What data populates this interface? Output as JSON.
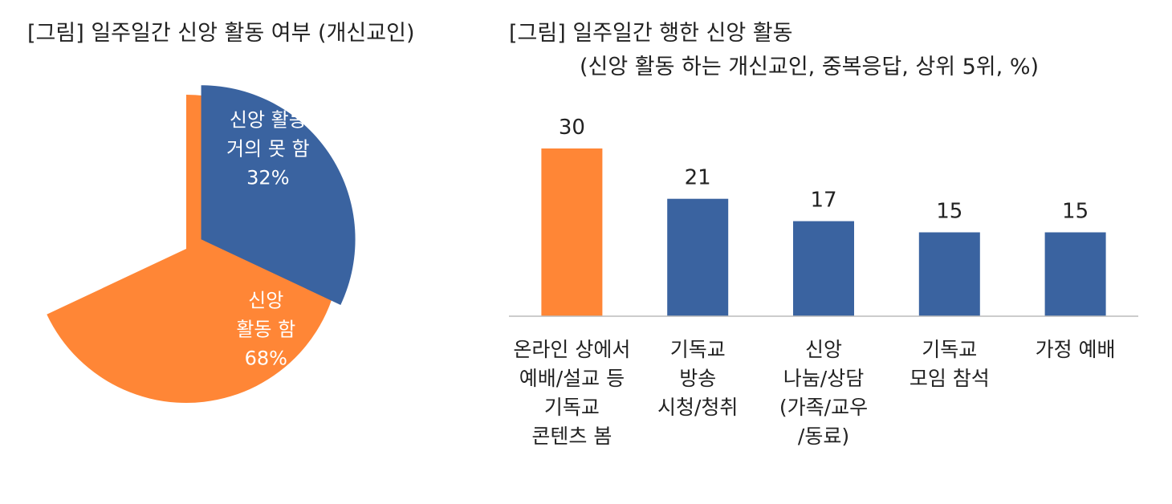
{
  "titles": {
    "pie": "[그림] 일주일간 신앙 활동 여부 (개신교인)",
    "bar": "[그림] 일주일간 행한 신앙 활동",
    "bar_subtitle": "(신앙 활동 하는 개신교인, 중복응답, 상위 5위, %)"
  },
  "colors": {
    "orange": "#FF8636",
    "blue": "#3A63A0",
    "axis": "#BBBBBB"
  },
  "chart_data": [
    {
      "type": "pie",
      "title": "[그림] 일주일간 신앙 활동 여부 (개신교인)",
      "slices": [
        {
          "label_lines": [
            "신앙",
            "활동 함",
            "68%"
          ],
          "value": 68,
          "color": "#FF8636",
          "exploded": false
        },
        {
          "label_lines": [
            "신앙 활동",
            "거의 못 함",
            "32%"
          ],
          "value": 32,
          "color": "#3A63A0",
          "exploded": true
        }
      ]
    },
    {
      "type": "bar",
      "title": "[그림] 일주일간 행한 신앙 활동",
      "subtitle": "(신앙 활동 하는 개신교인, 중복응답, 상위 5위, %)",
      "categories": [
        [
          "온라인 상에서",
          "예배/설교 등",
          "기독교",
          "콘텐츠 봄"
        ],
        [
          "기독교",
          "방송",
          "시청/청취"
        ],
        [
          "신앙",
          "나눔/상담",
          "(가족/교우",
          "/동료)"
        ],
        [
          "기독교",
          "모임 참석"
        ],
        [
          "가정 예배"
        ]
      ],
      "values": [
        30,
        21,
        17,
        15,
        15
      ],
      "colors": [
        "#FF8636",
        "#3A63A0",
        "#3A63A0",
        "#3A63A0",
        "#3A63A0"
      ],
      "ylim": [
        0,
        30
      ],
      "grid": false,
      "legend": "none"
    }
  ]
}
